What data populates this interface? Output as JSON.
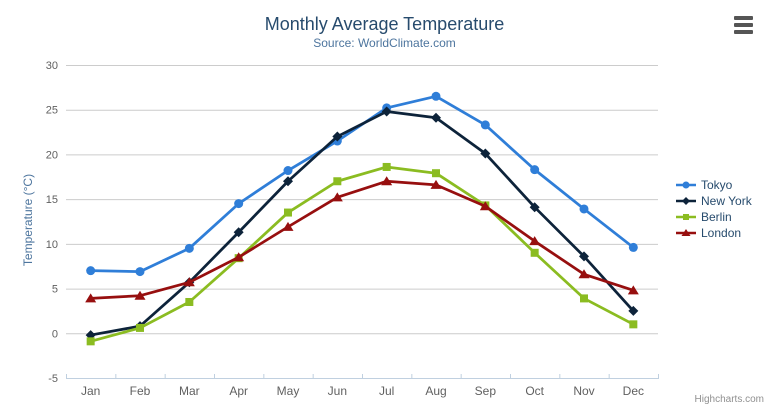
{
  "credits": "Highcharts.com",
  "icons": {
    "export_menu": "hamburger-menu-icon"
  },
  "chart_data": {
    "type": "line",
    "title": "Monthly Average Temperature",
    "subtitle": "Source: WorldClimate.com",
    "categories": [
      "Jan",
      "Feb",
      "Mar",
      "Apr",
      "May",
      "Jun",
      "Jul",
      "Aug",
      "Sep",
      "Oct",
      "Nov",
      "Dec"
    ],
    "xlabel": "",
    "ylabel": "Temperature (°C)",
    "ylim": [
      -5,
      30
    ],
    "yticks": [
      30,
      25,
      20,
      15,
      10,
      5,
      0,
      -5
    ],
    "grid": true,
    "legend_position": "right",
    "series": [
      {
        "name": "Tokyo",
        "color": "#2f7ed8",
        "marker": "circle",
        "values": [
          7.0,
          6.9,
          9.5,
          14.5,
          18.2,
          21.5,
          25.2,
          26.5,
          23.3,
          18.3,
          13.9,
          9.6
        ]
      },
      {
        "name": "New York",
        "color": "#0d233a",
        "marker": "diamond",
        "values": [
          -0.2,
          0.8,
          5.7,
          11.3,
          17.0,
          22.0,
          24.8,
          24.1,
          20.1,
          14.1,
          8.6,
          2.5
        ]
      },
      {
        "name": "Berlin",
        "color": "#8bbc21",
        "marker": "square",
        "values": [
          -0.9,
          0.6,
          3.5,
          8.4,
          13.5,
          17.0,
          18.6,
          17.9,
          14.3,
          9.0,
          3.9,
          1.0
        ]
      },
      {
        "name": "London",
        "color": "#970f0f",
        "marker": "triangle",
        "values": [
          3.9,
          4.2,
          5.7,
          8.5,
          11.9,
          15.2,
          17.0,
          16.6,
          14.2,
          10.3,
          6.6,
          4.8
        ]
      }
    ]
  }
}
